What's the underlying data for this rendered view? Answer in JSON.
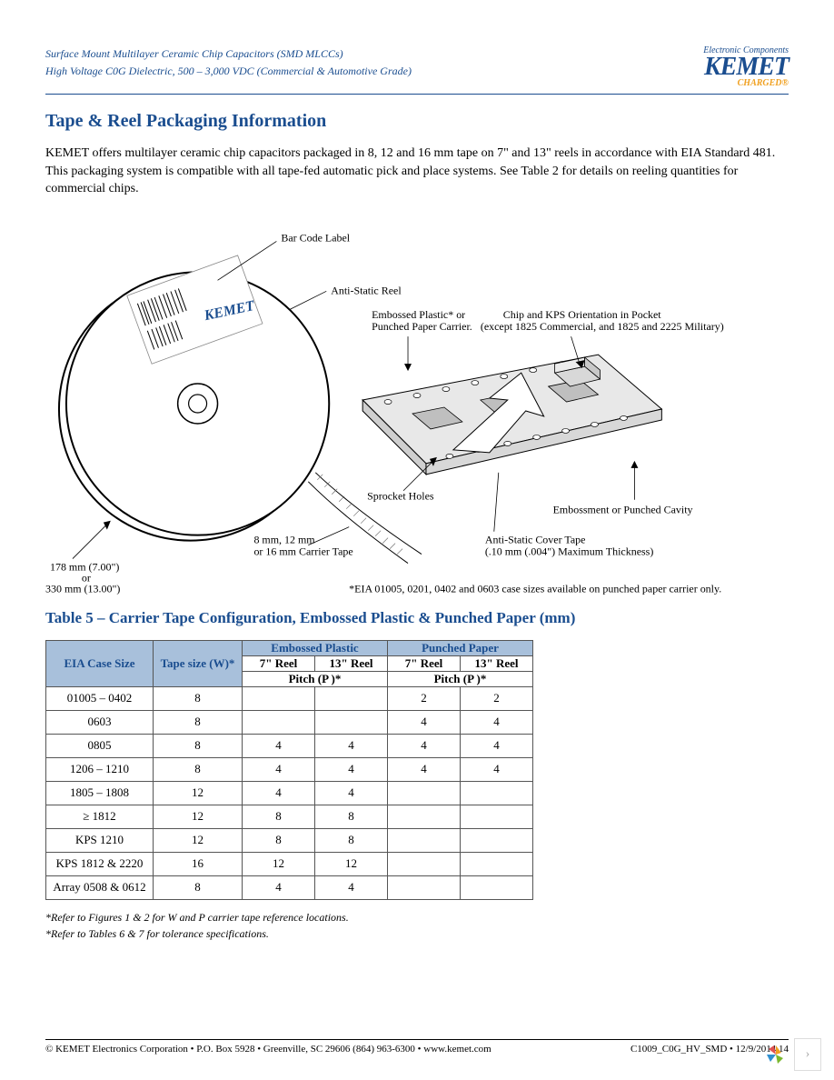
{
  "header": {
    "line1": "Surface Mount Multilayer Ceramic Chip Capacitors (SMD MLCCs)",
    "line2": "High Voltage C0G Dielectric, 500 – 3,000 VDC (Commercial & Automotive Grade)",
    "brand_super": "Electronic Components",
    "brand": "KEMET",
    "brand_sub": "CHARGED®"
  },
  "section": {
    "title": "Tape & Reel Packaging Information",
    "body": "KEMET offers multilayer ceramic chip capacitors packaged in 8, 12 and 16 mm tape on 7\" and 13\" reels in accordance with EIA Standard 481. This packaging system is compatible with all tape-fed automatic pick and place systems. See Table 2 for details on reeling quantities for commercial chips."
  },
  "diagram": {
    "label_barcode": "Bar Code Label",
    "label_antistatic_reel": "Anti-Static Reel",
    "label_carrier_type1": "Embossed Plastic* or",
    "label_carrier_type2": "Punched Paper Carrier.",
    "label_chip_orient1": "Chip and KPS Orientation in Pocket",
    "label_chip_orient2": "(except 1825 Commercial, and 1825 and 2225 Military)",
    "label_sprocket": "Sprocket Holes",
    "label_embossment": "Embossment or Punched Cavity",
    "label_cover1": "Anti-Static Cover Tape",
    "label_cover2": "(.10 mm (.004\") Maximum Thickness)",
    "label_tape1": "8 mm, 12 mm",
    "label_tape2": "or 16 mm Carrier Tape",
    "label_reel_size1": "178 mm (7.00\")",
    "label_reel_size2": "or",
    "label_reel_size3": "330 mm (13.00\")",
    "footnote": "*EIA 01005, 0201, 0402 and 0603 case sizes available on punched paper carrier only.",
    "barcode_brand": "KEMET"
  },
  "table": {
    "title": "Table 5 – Carrier Tape Configuration, Embossed Plastic & Punched Paper (mm)",
    "col_case": "EIA Case Size",
    "col_tape": "Tape size (W)*",
    "grp_embossed": "Embossed Plastic",
    "grp_punched": "Punched Paper",
    "sub_7reel": "7\" Reel",
    "sub_13reel": "13\" Reel",
    "sub_pitch": "Pitch (P )*",
    "rows": [
      {
        "case": "01005 – 0402",
        "w": "8",
        "e7": "",
        "e13": "",
        "p7": "2",
        "p13": "2"
      },
      {
        "case": "0603",
        "w": "8",
        "e7": "",
        "e13": "",
        "p7": "4",
        "p13": "4"
      },
      {
        "case": "0805",
        "w": "8",
        "e7": "4",
        "e13": "4",
        "p7": "4",
        "p13": "4"
      },
      {
        "case": "1206 – 1210",
        "w": "8",
        "e7": "4",
        "e13": "4",
        "p7": "4",
        "p13": "4"
      },
      {
        "case": "1805 – 1808",
        "w": "12",
        "e7": "4",
        "e13": "4",
        "p7": "",
        "p13": ""
      },
      {
        "case": "≥ 1812",
        "w": "12",
        "e7": "8",
        "e13": "8",
        "p7": "",
        "p13": ""
      },
      {
        "case": "KPS 1210",
        "w": "12",
        "e7": "8",
        "e13": "8",
        "p7": "",
        "p13": ""
      },
      {
        "case": "KPS 1812 & 2220",
        "w": "16",
        "e7": "12",
        "e13": "12",
        "p7": "",
        "p13": ""
      },
      {
        "case": "Array 0508 & 0612",
        "w": "8",
        "e7": "4",
        "e13": "4",
        "p7": "",
        "p13": ""
      }
    ],
    "footnote1": "*Refer to Figures 1 & 2 for W and P    carrier tape reference locations.",
    "footnote2": "*Refer to Tables 6 & 7 for tolerance specifications."
  },
  "footer": {
    "left": "© KEMET Electronics Corporation • P.O. Box 5928 • Greenville, SC 29606 (864) 963-6300 • www.kemet.com",
    "right": "C1009_C0G_HV_SMD • 12/9/2014 14"
  },
  "colors": {
    "brand_blue": "#1a4d8f",
    "brand_orange": "#f0a020",
    "table_header_bg": "#a8c0db"
  }
}
